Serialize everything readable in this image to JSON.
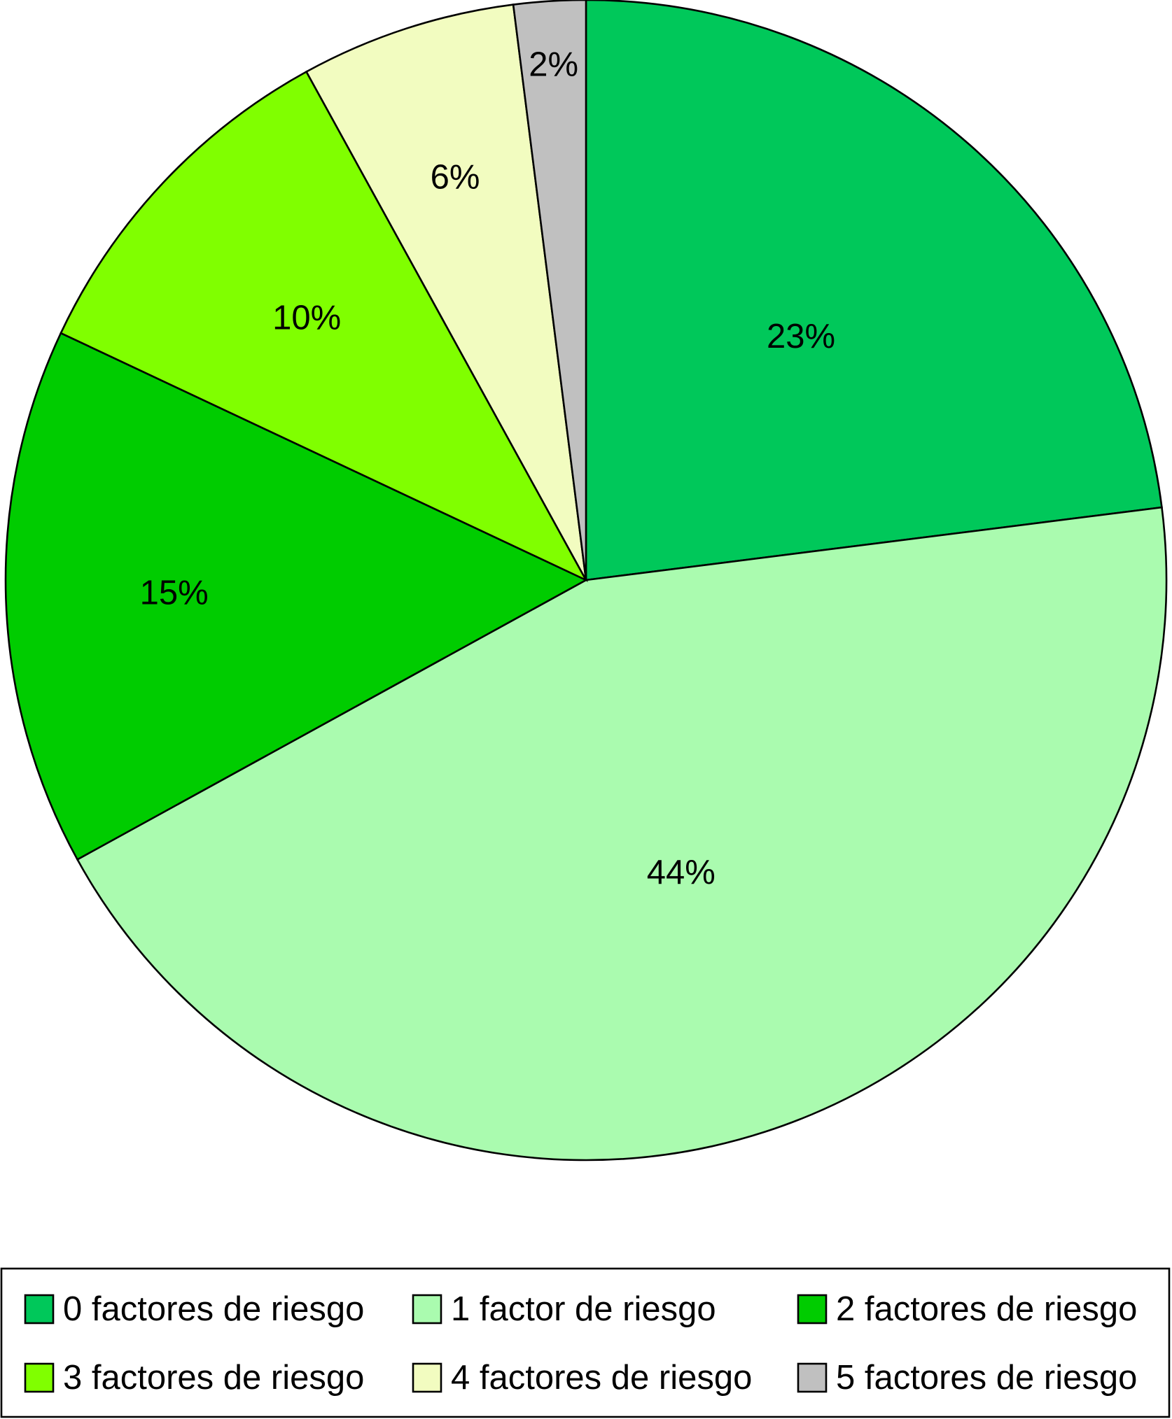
{
  "chart_data": {
    "type": "pie",
    "title": "",
    "start_angle": "12 o'clock",
    "direction": "clockwise",
    "legend_position": "bottom",
    "slices": [
      {
        "label": "0 factores de riesgo",
        "value": 23,
        "value_label": "23%",
        "color": "#00C85A"
      },
      {
        "label": "1 factor de riesgo",
        "value": 44,
        "value_label": "44%",
        "color": "#AAFBAF"
      },
      {
        "label": "2 factores de riesgo",
        "value": 15,
        "value_label": "15%",
        "color": "#00CC00"
      },
      {
        "label": "3 factores de riesgo",
        "value": 10,
        "value_label": "10%",
        "color": "#80FF00"
      },
      {
        "label": "4 factores de riesgo",
        "value": 6,
        "value_label": "6%",
        "color": "#F2FCC0"
      },
      {
        "label": "5 factores de riesgo",
        "value": 2,
        "value_label": "2%",
        "color": "#C0C0C0"
      }
    ]
  }
}
